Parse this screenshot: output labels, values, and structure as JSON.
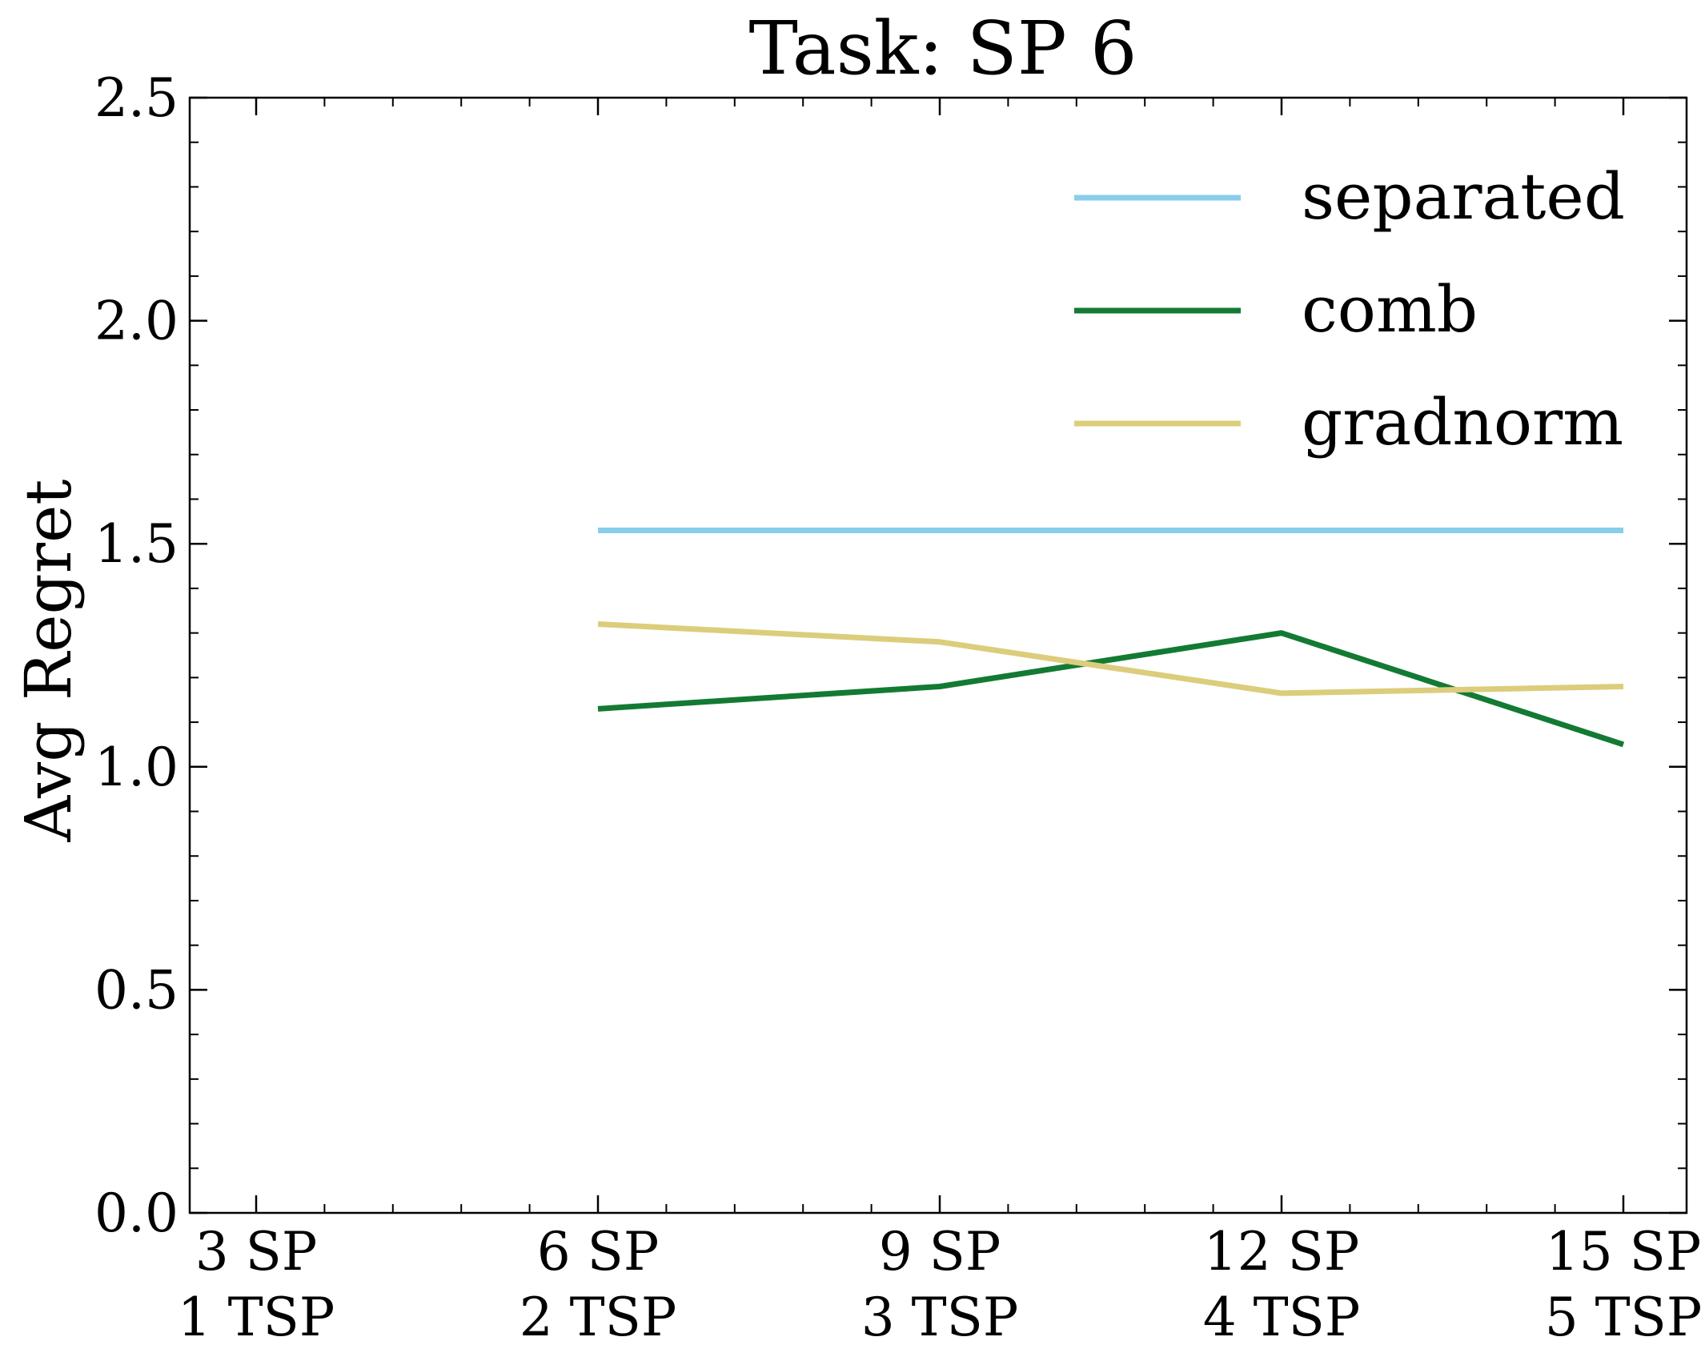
{
  "chart_data": {
    "type": "line",
    "title": "Task: SP 6",
    "xlabel": "",
    "ylabel": "Avg Regret",
    "categories": [
      [
        "3 SP",
        "1 TSP"
      ],
      [
        "6 SP",
        "2 TSP"
      ],
      [
        "9 SP",
        "3 TSP"
      ],
      [
        "12 SP",
        "4 TSP"
      ],
      [
        "15 SP",
        "5 TSP"
      ]
    ],
    "ylim": [
      0,
      2.5
    ],
    "yticks": [
      "0.0",
      "0.5",
      "1.0",
      "1.5",
      "2.0",
      "2.5"
    ],
    "ytick_values": [
      0,
      0.5,
      1.0,
      1.5,
      2.0,
      2.5
    ],
    "grid": false,
    "legend_position": "top-right",
    "series": [
      {
        "name": "separated",
        "color": "#88ceeb",
        "values": [
          null,
          1.53,
          1.53,
          1.53,
          1.53
        ]
      },
      {
        "name": "comb",
        "color": "#137a33",
        "values": [
          null,
          1.13,
          1.18,
          1.3,
          1.05
        ]
      },
      {
        "name": "gradnorm",
        "color": "#dccd7c",
        "values": [
          null,
          1.32,
          1.28,
          1.165,
          1.18
        ]
      }
    ]
  }
}
